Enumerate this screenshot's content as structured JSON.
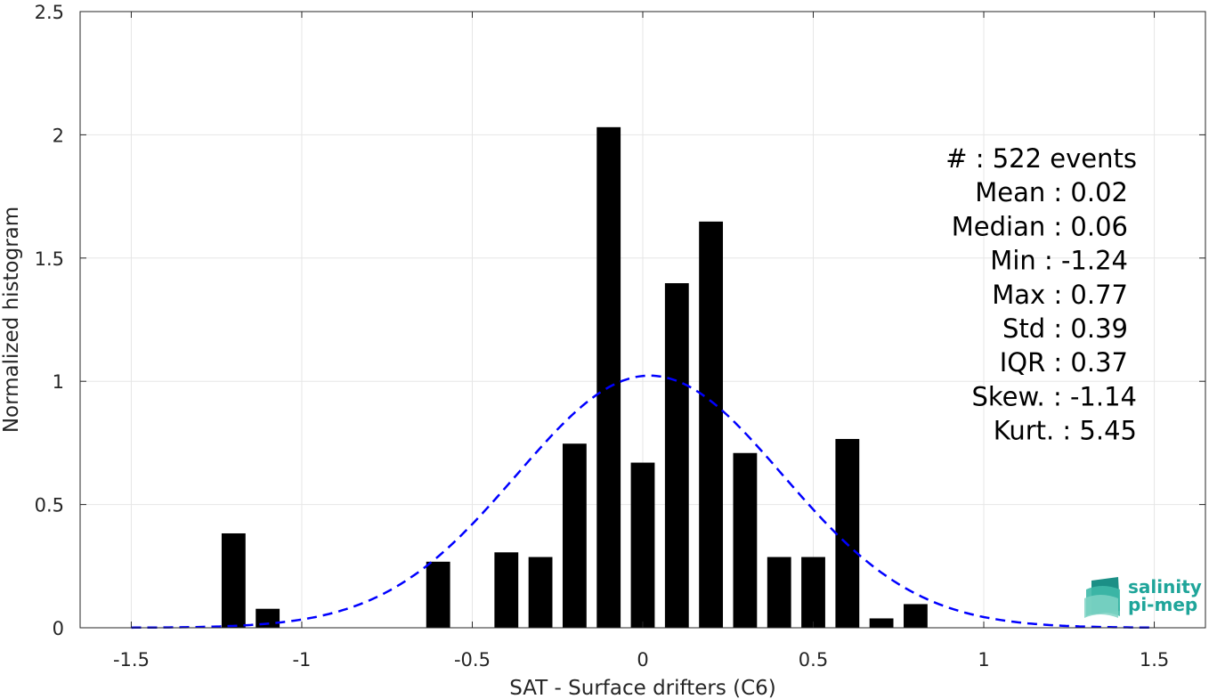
{
  "chart_data": {
    "type": "bar",
    "xlabel": "SAT - Surface drifters (C6)",
    "ylabel": "Normalized histogram",
    "xlim": [
      -1.65,
      1.65
    ],
    "ylim": [
      0,
      2.5
    ],
    "xticks": [
      -1.5,
      -1,
      -0.5,
      0,
      0.5,
      1,
      1.5
    ],
    "xtick_labels": [
      "-1.5",
      "-1",
      "-0.5",
      "0",
      "0.5",
      "1",
      "1.5"
    ],
    "yticks": [
      0,
      0.5,
      1,
      1.5,
      2,
      2.5
    ],
    "ytick_labels": [
      "0",
      "0.5",
      "1",
      "1.5",
      "2",
      "2.5"
    ],
    "grid": true,
    "bar_width": 0.07,
    "bars": [
      {
        "x": -1.2,
        "y": 0.383
      },
      {
        "x": -1.1,
        "y": 0.077
      },
      {
        "x": -0.6,
        "y": 0.268
      },
      {
        "x": -0.4,
        "y": 0.306
      },
      {
        "x": -0.3,
        "y": 0.287
      },
      {
        "x": -0.2,
        "y": 0.747
      },
      {
        "x": -0.1,
        "y": 2.031
      },
      {
        "x": 0.0,
        "y": 0.67
      },
      {
        "x": 0.1,
        "y": 1.398
      },
      {
        "x": 0.2,
        "y": 1.648
      },
      {
        "x": 0.3,
        "y": 0.709
      },
      {
        "x": 0.4,
        "y": 0.287
      },
      {
        "x": 0.5,
        "y": 0.287
      },
      {
        "x": 0.6,
        "y": 0.766
      },
      {
        "x": 0.7,
        "y": 0.038
      },
      {
        "x": 0.8,
        "y": 0.096
      }
    ],
    "fit": {
      "type": "normal",
      "mean": 0.02,
      "std": 0.39,
      "style": "dashed",
      "color": "#0000ff"
    },
    "colors": {
      "bars": "#000000",
      "fit": "#0000ff",
      "grid": "#e6e6e6",
      "axis": "#262626"
    }
  },
  "stats": [
    {
      "label": "#  : 522 events",
      "align": "right-outer"
    },
    {
      "label": "Mean : 0.02",
      "align": "right-inner"
    },
    {
      "label": "Median : 0.06",
      "align": "right-inner"
    },
    {
      "label": "Min : -1.24",
      "align": "right-inner"
    },
    {
      "label": "Max : 0.77",
      "align": "right-inner"
    },
    {
      "label": "Std : 0.39",
      "align": "right-inner"
    },
    {
      "label": "IQR : 0.37",
      "align": "right-inner"
    },
    {
      "label": "Skew. : -1.14",
      "align": "right-outer"
    },
    {
      "label": "Kurt. : 5.45",
      "align": "right-outer"
    }
  ],
  "logo": {
    "line1": "salinity",
    "line2": "pi-mep",
    "icon": "salinity-wave-logo-icon",
    "color": "#1fa59a"
  }
}
